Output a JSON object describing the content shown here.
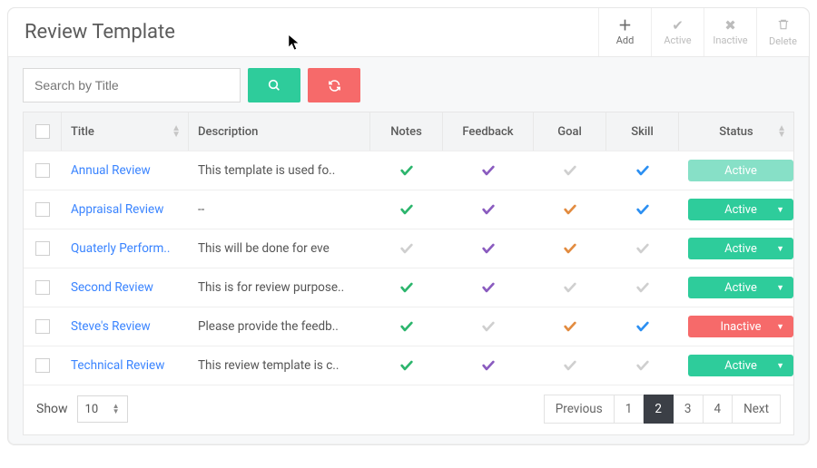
{
  "title": "Review Template",
  "header_actions": {
    "add": {
      "label": "Add",
      "icon": "+"
    },
    "active": {
      "label": "Active",
      "icon": "✔"
    },
    "inactive": {
      "label": "Inactive",
      "icon": "✖"
    },
    "delete": {
      "label": "Delete",
      "icon": "🗑"
    }
  },
  "search": {
    "placeholder": "Search by Title"
  },
  "columns": {
    "title": "Title",
    "description": "Description",
    "notes": "Notes",
    "feedback": "Feedback",
    "goal": "Goal",
    "skill": "Skill",
    "status": "Status"
  },
  "colors": {
    "green": "#2cb56d",
    "purple": "#8a5bbf",
    "orange": "#e28b3f",
    "blue": "#2b8ff2",
    "grey": "#cfcfcf",
    "teal": "#2ecc9b",
    "teal_light": "#87e0c7",
    "red": "#f66a6a"
  },
  "rows": [
    {
      "title": "Annual Review",
      "description": "This template is used fo..",
      "notes": "green",
      "feedback": "purple",
      "goal": "grey",
      "skill": "blue",
      "status": {
        "label": "Active",
        "variant": "teal_light",
        "caret": false
      }
    },
    {
      "title": "Appraisal Review",
      "description": "--",
      "notes": "green",
      "feedback": "purple",
      "goal": "orange",
      "skill": "blue",
      "status": {
        "label": "Active",
        "variant": "teal",
        "caret": true
      }
    },
    {
      "title": "Quaterly Perform..",
      "description": "This will be done for eve",
      "notes": "grey",
      "feedback": "purple",
      "goal": "orange",
      "skill": "grey",
      "status": {
        "label": "Active",
        "variant": "teal",
        "caret": true
      }
    },
    {
      "title": "Second Review",
      "description": "This is for review purpose..",
      "notes": "green",
      "feedback": "purple",
      "goal": "grey",
      "skill": "grey",
      "status": {
        "label": "Active",
        "variant": "teal",
        "caret": true
      }
    },
    {
      "title": "Steve's Review",
      "description": "Please provide the feedb..",
      "notes": "green",
      "feedback": "grey",
      "goal": "orange",
      "skill": "blue",
      "status": {
        "label": "Inactive",
        "variant": "red",
        "caret": true
      }
    },
    {
      "title": "Technical Review",
      "description": "This review template is c..",
      "notes": "green",
      "feedback": "purple",
      "goal": "grey",
      "skill": "grey",
      "status": {
        "label": "Active",
        "variant": "teal",
        "caret": true
      }
    }
  ],
  "footer": {
    "show_label": "Show",
    "page_size": "10",
    "pager": {
      "prev": "Previous",
      "next": "Next",
      "pages": [
        "1",
        "2",
        "3",
        "4"
      ],
      "active": "2"
    }
  }
}
